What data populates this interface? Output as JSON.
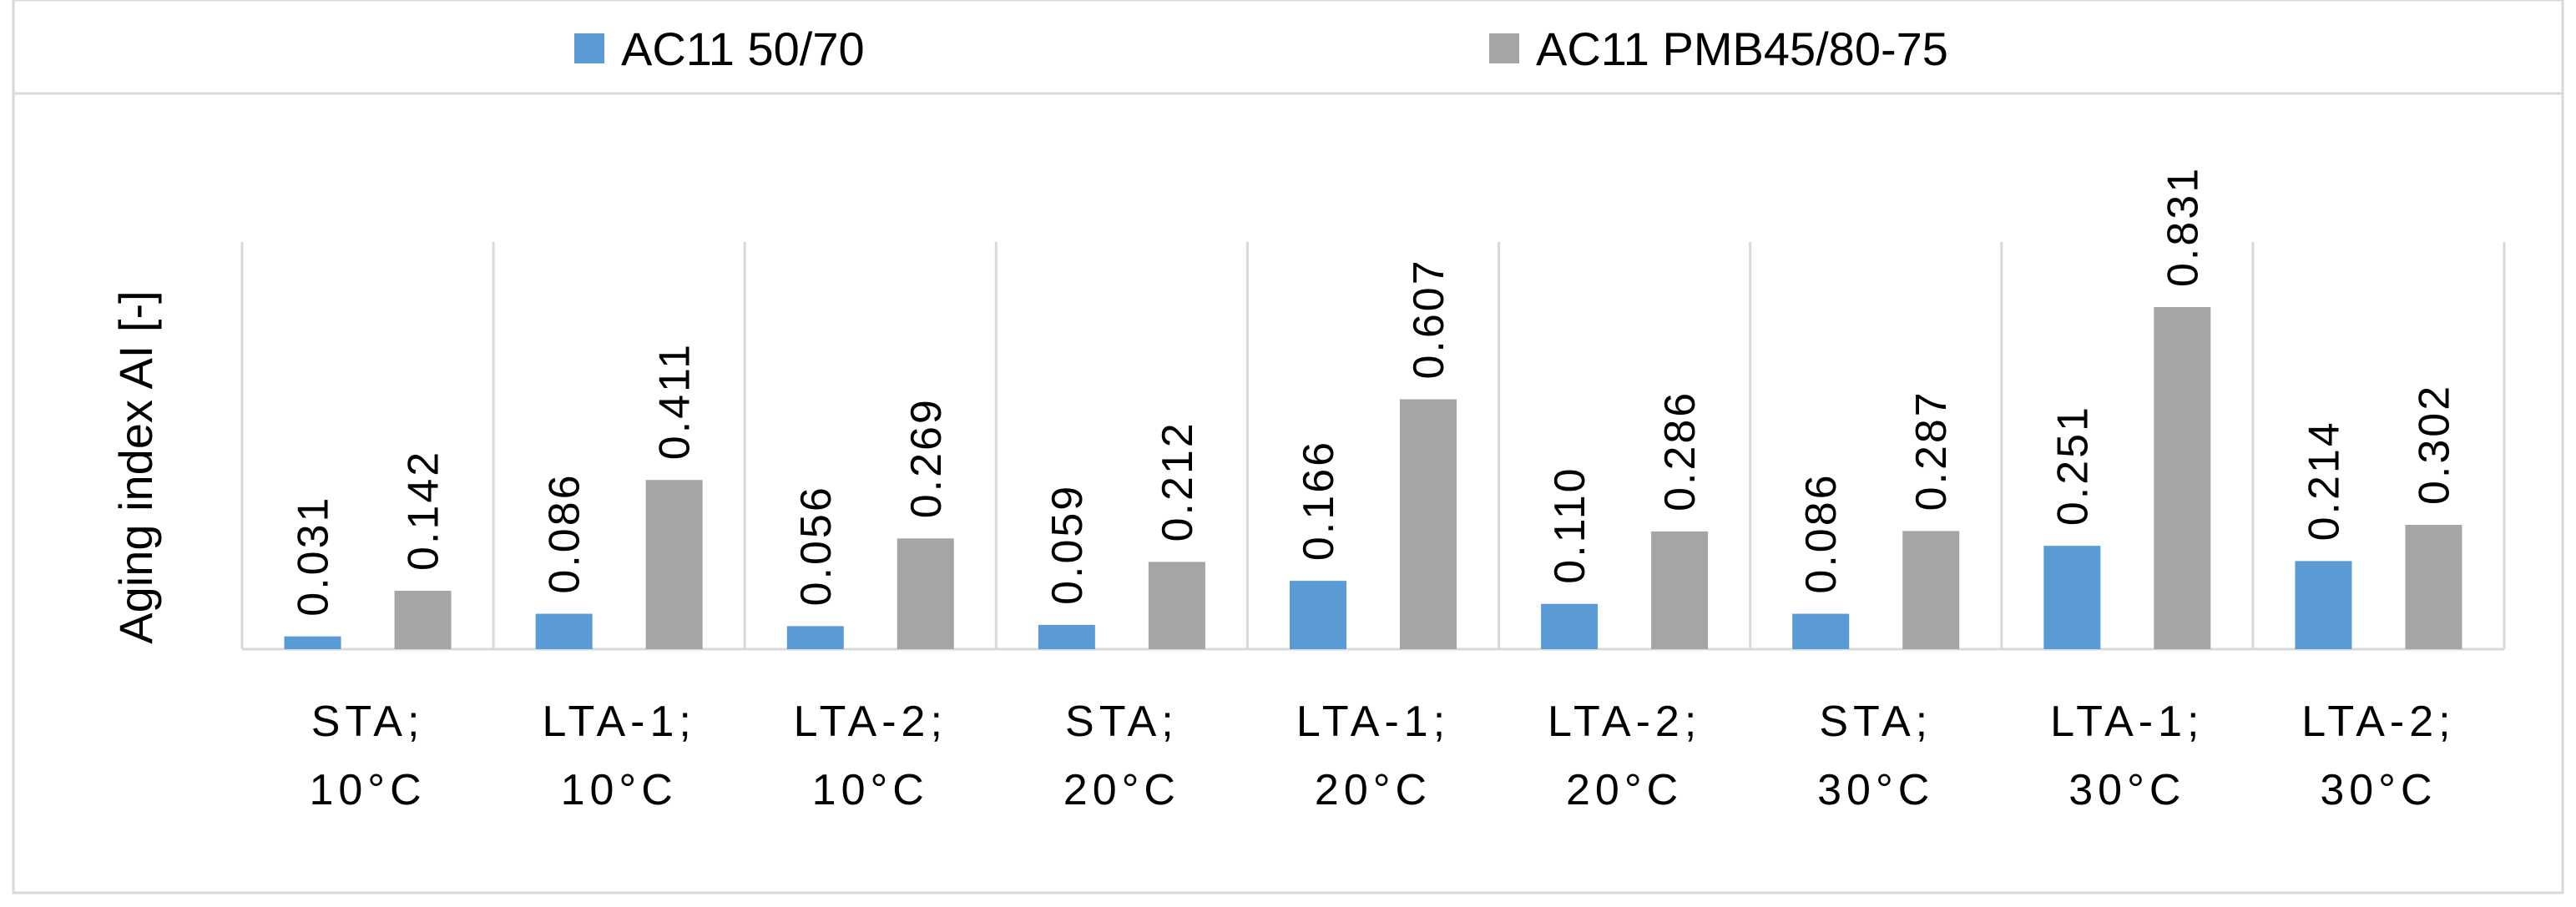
{
  "chart_data": {
    "type": "bar",
    "title": "",
    "xlabel": "",
    "ylabel": "Aging index AI [-]",
    "ylim": [
      0,
      0.9
    ],
    "grid": false,
    "legend_position": "top",
    "category_separators": true,
    "categories": [
      [
        "STA;",
        "10°C"
      ],
      [
        "LTA-1;",
        "10°C"
      ],
      [
        "LTA-2;",
        "10°C"
      ],
      [
        "STA;",
        "20°C"
      ],
      [
        "LTA-1;",
        "20°C"
      ],
      [
        "LTA-2;",
        "20°C"
      ],
      [
        "STA;",
        "30°C"
      ],
      [
        "LTA-1;",
        "30°C"
      ],
      [
        "LTA-2;",
        "30°C"
      ]
    ],
    "series": [
      {
        "name": "AC11 50/70",
        "color": "#5B9BD5",
        "values": [
          0.031,
          0.086,
          0.056,
          0.059,
          0.166,
          0.11,
          0.086,
          0.251,
          0.214
        ],
        "labels": [
          "0.031",
          "0.086",
          "0.056",
          "0.059",
          "0.166",
          "0.110",
          "0.086",
          "0.251",
          "0.214"
        ]
      },
      {
        "name": "AC11 PMB45/80-75",
        "color": "#A5A5A5",
        "values": [
          0.142,
          0.411,
          0.269,
          0.212,
          0.607,
          0.286,
          0.287,
          0.831,
          0.302
        ],
        "labels": [
          "0.142",
          "0.411",
          "0.269",
          "0.212",
          "0.607",
          "0.286",
          "0.287",
          "0.831",
          "0.302"
        ]
      }
    ],
    "axis_color": "#D9D9D9",
    "frame_color": "#D9D9D9"
  }
}
